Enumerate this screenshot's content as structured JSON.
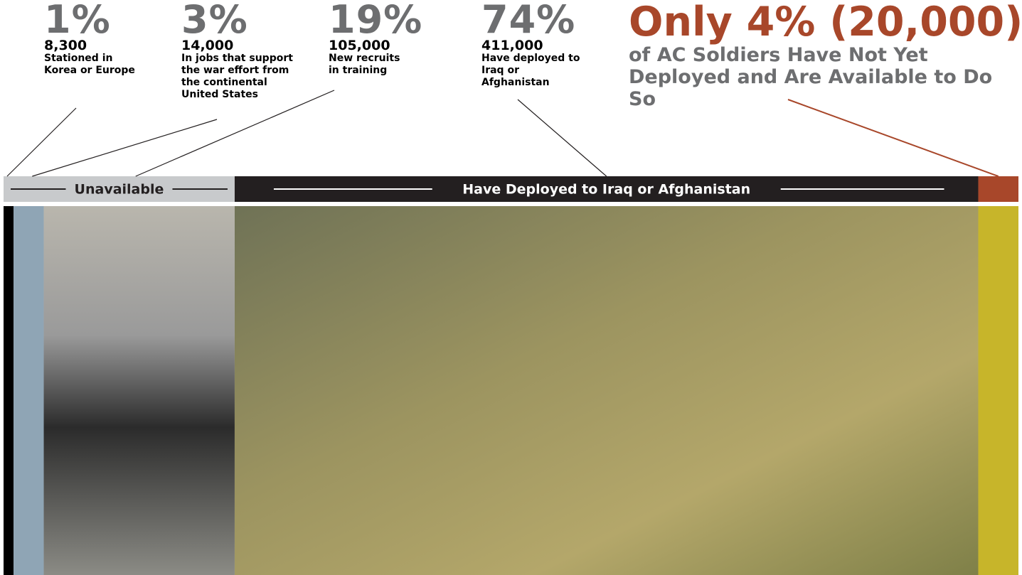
{
  "callouts": [
    {
      "percent": 1,
      "percent_label": "1%",
      "count_label": "8,300",
      "description": "Stationed in Korea or Europe",
      "color": "#000000"
    },
    {
      "percent": 3,
      "percent_label": "3%",
      "count_label": "14,000",
      "description": "In jobs that support the war effort from the continental United States",
      "color": "#8fa5b5"
    },
    {
      "percent": 19,
      "percent_label": "19%",
      "count_label": "105,000",
      "description": "New recruits in training",
      "color": "#8d8c88"
    },
    {
      "percent": 74,
      "percent_label": "74%",
      "count_label": "411,000",
      "description": "Have deployed to Iraq or Afghanistan",
      "color": "#8a8a5a"
    }
  ],
  "headline": {
    "percent": 4,
    "title": "Only 4% (20,000)",
    "subtitle": "of AC Soldiers Have Not Yet Deployed and Are Available to Do So",
    "color": "#c7b52a"
  },
  "bands": {
    "unavailable": "Unavailable",
    "deployed": "Have Deployed to Iraq or Afghanistan"
  }
}
